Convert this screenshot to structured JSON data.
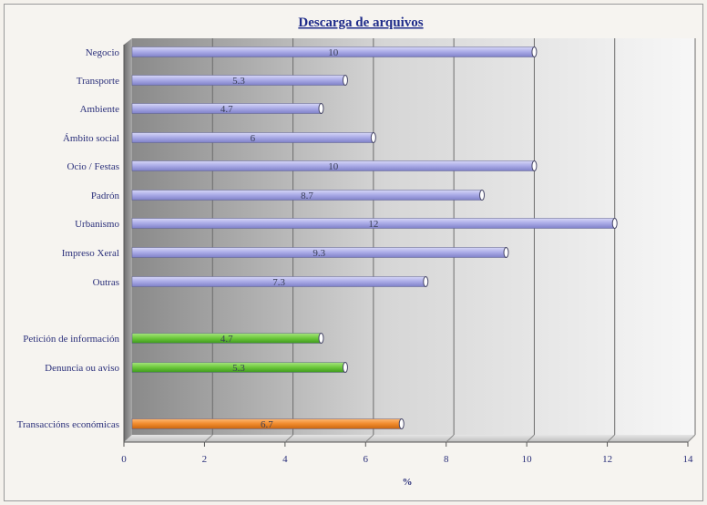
{
  "chart_data": {
    "type": "bar",
    "orientation": "horizontal",
    "title": "Descarga de arquivos",
    "xlabel": "%",
    "ylabel": "",
    "xlim": [
      0,
      14
    ],
    "xticks": [
      0,
      2,
      4,
      6,
      8,
      10,
      12,
      14
    ],
    "grid": true,
    "legend": "none",
    "categories": [
      "Negocio",
      "Transporte",
      "Ambiente",
      "Ámbito social",
      "Ocio / Festas",
      "Padrón",
      "Urbanismo",
      "Impreso Xeral",
      "Outras",
      "Petición de información",
      "Denuncia ou aviso",
      "Transaccións económicas"
    ],
    "values": [
      10,
      5.3,
      4.7,
      6,
      10,
      8.7,
      12,
      9.3,
      7.3,
      4.7,
      5.3,
      6.7
    ],
    "value_labels": [
      "10",
      "5.3",
      "4.7",
      "6",
      "10",
      "8.7",
      "12",
      "9.3",
      "7.3",
      "4.7",
      "5.3",
      "6.7"
    ],
    "groups": [
      "descarga",
      "descarga",
      "descarga",
      "descarga",
      "descarga",
      "descarga",
      "descarga",
      "descarga",
      "descarga",
      "solicitude",
      "solicitude",
      "transaccion"
    ],
    "colors": {
      "descarga": "#a9aae6",
      "solicitude": "#6cc83c",
      "transaccion": "#f08a2c"
    }
  }
}
